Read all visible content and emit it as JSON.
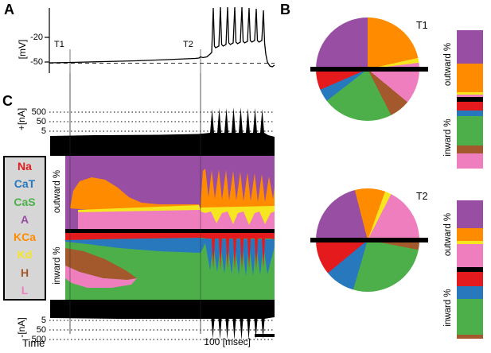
{
  "panels": {
    "a": "A",
    "b": "B",
    "c": "C"
  },
  "panel_a": {
    "ylabel": "[mV]",
    "yticks": [
      "-20",
      "-50"
    ],
    "t1": "T1",
    "t2": "T2"
  },
  "panel_c": {
    "out_axis": "+[nA]",
    "out_ticks": [
      "500",
      "50",
      "5"
    ],
    "in_ticks": [
      "5",
      "50",
      "500"
    ],
    "in_axis": "-[nA]",
    "outward_label": "outward %",
    "inward_label": "inward %",
    "time_label": "Time",
    "scalebar": "100 [msec]"
  },
  "panel_b": {
    "t1": "T1",
    "t2": "T2",
    "outward_label": "outward %",
    "inward_label": "inward %"
  },
  "legend": {
    "items": [
      {
        "label": "Na",
        "color": "#e41a1c"
      },
      {
        "label": "CaT",
        "color": "#2878bd"
      },
      {
        "label": "CaS",
        "color": "#4daf4a"
      },
      {
        "label": "A",
        "color": "#984ea3"
      },
      {
        "label": "KCa",
        "color": "#ff8c00"
      },
      {
        "label": "Kd",
        "color": "#f5e61f"
      },
      {
        "label": "H",
        "color": "#a3592b"
      },
      {
        "label": "L",
        "color": "#ef7ebe"
      }
    ]
  },
  "chart_data": [
    {
      "id": "voltage_trace",
      "panel": "A",
      "type": "line",
      "ylabel": "[mV]",
      "yticks": [
        -20,
        -50
      ],
      "baseline_mV": -50,
      "dashed_reference_mV": -50,
      "n_spikes_in_burst": 8,
      "annotations": [
        "T1",
        "T2"
      ],
      "description": "Membrane potential: slow depolarization from -50 mV through T1 and T2, then a burst of 8 action potentials, returning to rest."
    },
    {
      "id": "total_outward_current",
      "panel": "C",
      "type": "area",
      "ylabel": "+[nA]",
      "yscale": "log",
      "yticks": [
        500,
        50,
        5
      ],
      "description": "Total outward current (black, log scale): ~5 nA during quiet phase, spikes exceeding 500 nA during the burst."
    },
    {
      "id": "currentscape",
      "panel": "C",
      "type": "area",
      "regions": [
        "outward %",
        "inward %"
      ],
      "currents": [
        "Na",
        "CaT",
        "CaS",
        "A",
        "KCa",
        "Kd",
        "H",
        "L"
      ],
      "xlabel": "Time",
      "scalebar": "100 [msec]",
      "description": "Stacked percentage contribution of each current to total outward (top) and inward (bottom) current over time. Quiet phase dominated by A (purple) and KCa (orange) outward and CaS (green) inward with H (brown) and L (pink) wedges; during the burst Kd (yellow), KCa, L oscillate outward while Na (red) and CaT (blue) spikes alternate with CaS inward."
    },
    {
      "id": "total_inward_current",
      "panel": "C",
      "type": "area",
      "ylabel": "-[nA]",
      "yscale": "log",
      "yticks": [
        5,
        50,
        500
      ],
      "description": "Total inward current (black, log scale): ~5 nA during quiet phase, spikes exceeding 500 nA during the burst."
    },
    {
      "id": "current_share_pies",
      "panel": "B",
      "type": "pie",
      "note": "Top half of each pie = outward % composition, bottom half = inward % composition; matching stacked bars at right. Values are percent of the respective half.",
      "timepoints": [
        {
          "label": "T1",
          "outward_pct": [
            {
              "current": "A",
              "pct": 50
            },
            {
              "current": "KCa",
              "pct": 43
            },
            {
              "current": "Kd",
              "pct": 3
            },
            {
              "current": "L",
              "pct": 4
            }
          ],
          "inward_pct": [
            {
              "current": "Na",
              "pct": 13
            },
            {
              "current": "CaT",
              "pct": 8
            },
            {
              "current": "CaS",
              "pct": 44
            },
            {
              "current": "H",
              "pct": 13
            },
            {
              "current": "L",
              "pct": 22
            }
          ]
        },
        {
          "label": "T2",
          "outward_pct": [
            {
              "current": "A",
              "pct": 42
            },
            {
              "current": "KCa",
              "pct": 19
            },
            {
              "current": "Kd",
              "pct": 4
            },
            {
              "current": "L",
              "pct": 35
            }
          ],
          "inward_pct": [
            {
              "current": "Na",
              "pct": 22
            },
            {
              "current": "CaT",
              "pct": 19
            },
            {
              "current": "CaS",
              "pct": 53
            },
            {
              "current": "H",
              "pct": 6
            }
          ]
        }
      ]
    }
  ]
}
